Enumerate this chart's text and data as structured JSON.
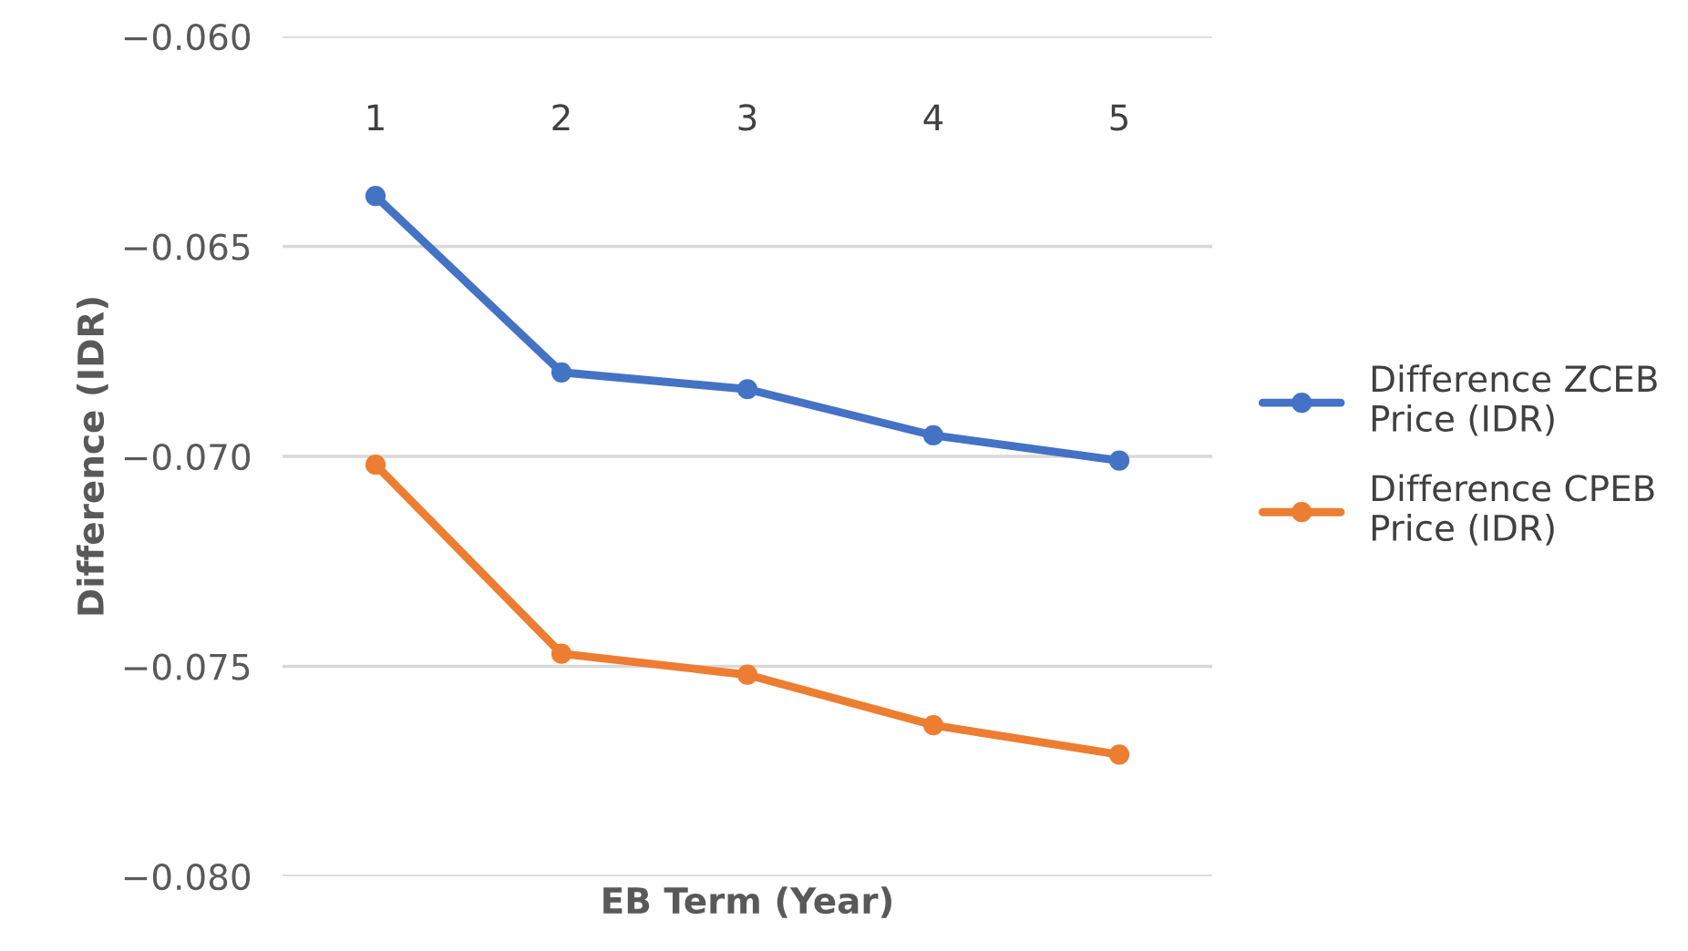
{
  "chart_data": {
    "type": "line",
    "xlabel": "EB Term (Year)",
    "ylabel": "Difference (IDR)",
    "categories": [
      "1",
      "2",
      "3",
      "4",
      "5"
    ],
    "series": [
      {
        "name": "Difference ZCEB Price (IDR)",
        "color": "#4472c4",
        "values": [
          -0.0638,
          -0.068,
          -0.0684,
          -0.0695,
          -0.0701
        ]
      },
      {
        "name": "Difference CPEB Price (IDR)",
        "color": "#ed7d31",
        "values": [
          -0.0702,
          -0.0747,
          -0.0752,
          -0.0764,
          -0.0771
        ]
      }
    ],
    "ylim": [
      -0.08,
      -0.06
    ],
    "yticks": [
      {
        "value": -0.08,
        "label": "−0.080"
      },
      {
        "value": -0.075,
        "label": "−0.075"
      },
      {
        "value": -0.07,
        "label": "−0.070"
      },
      {
        "value": -0.065,
        "label": "−0.065"
      },
      {
        "value": -0.06,
        "label": "−0.060"
      }
    ],
    "grid": "y",
    "legend": "right",
    "marker": "circle",
    "line_style": "solid"
  }
}
